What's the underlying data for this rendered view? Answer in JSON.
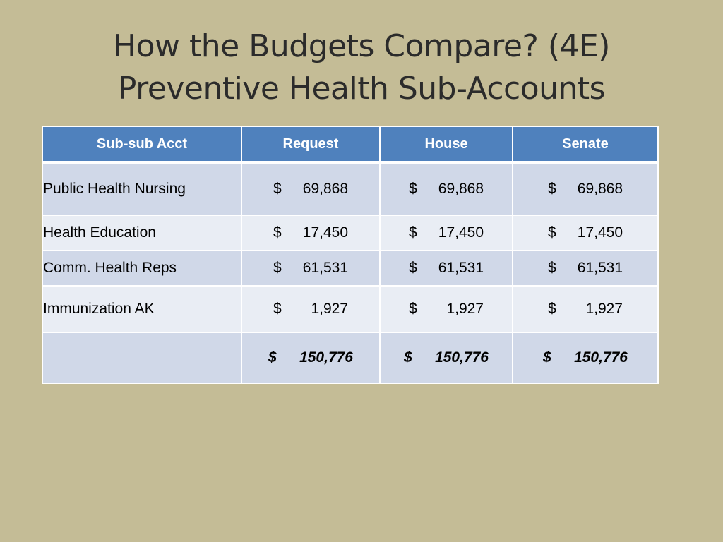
{
  "title": {
    "line1": "How the Budgets Compare? (4E)",
    "line2": "Preventive Health Sub-Accounts"
  },
  "table": {
    "headers": [
      "Sub-sub Acct",
      "Request",
      "House",
      "Senate"
    ],
    "currency_symbol": "$",
    "rows": [
      {
        "label": "Public Health Nursing",
        "request": "69,868",
        "house": "69,868",
        "senate": "69,868"
      },
      {
        "label": "Health Education",
        "request": "17,450",
        "house": "17,450",
        "senate": "17,450"
      },
      {
        "label": "Comm. Health Reps",
        "request": "61,531",
        "house": "61,531",
        "senate": "61,531"
      },
      {
        "label": "Immunization AK",
        "request": "1,927",
        "house": "1,927",
        "senate": "1,927"
      }
    ],
    "total": {
      "label": "",
      "request": "150,776",
      "house": "150,776",
      "senate": "150,776"
    }
  },
  "colors": {
    "background": "#c4bc96",
    "header": "#4f81bd",
    "row_band_dark": "#d0d8e8",
    "row_band_light": "#e9edf4"
  }
}
